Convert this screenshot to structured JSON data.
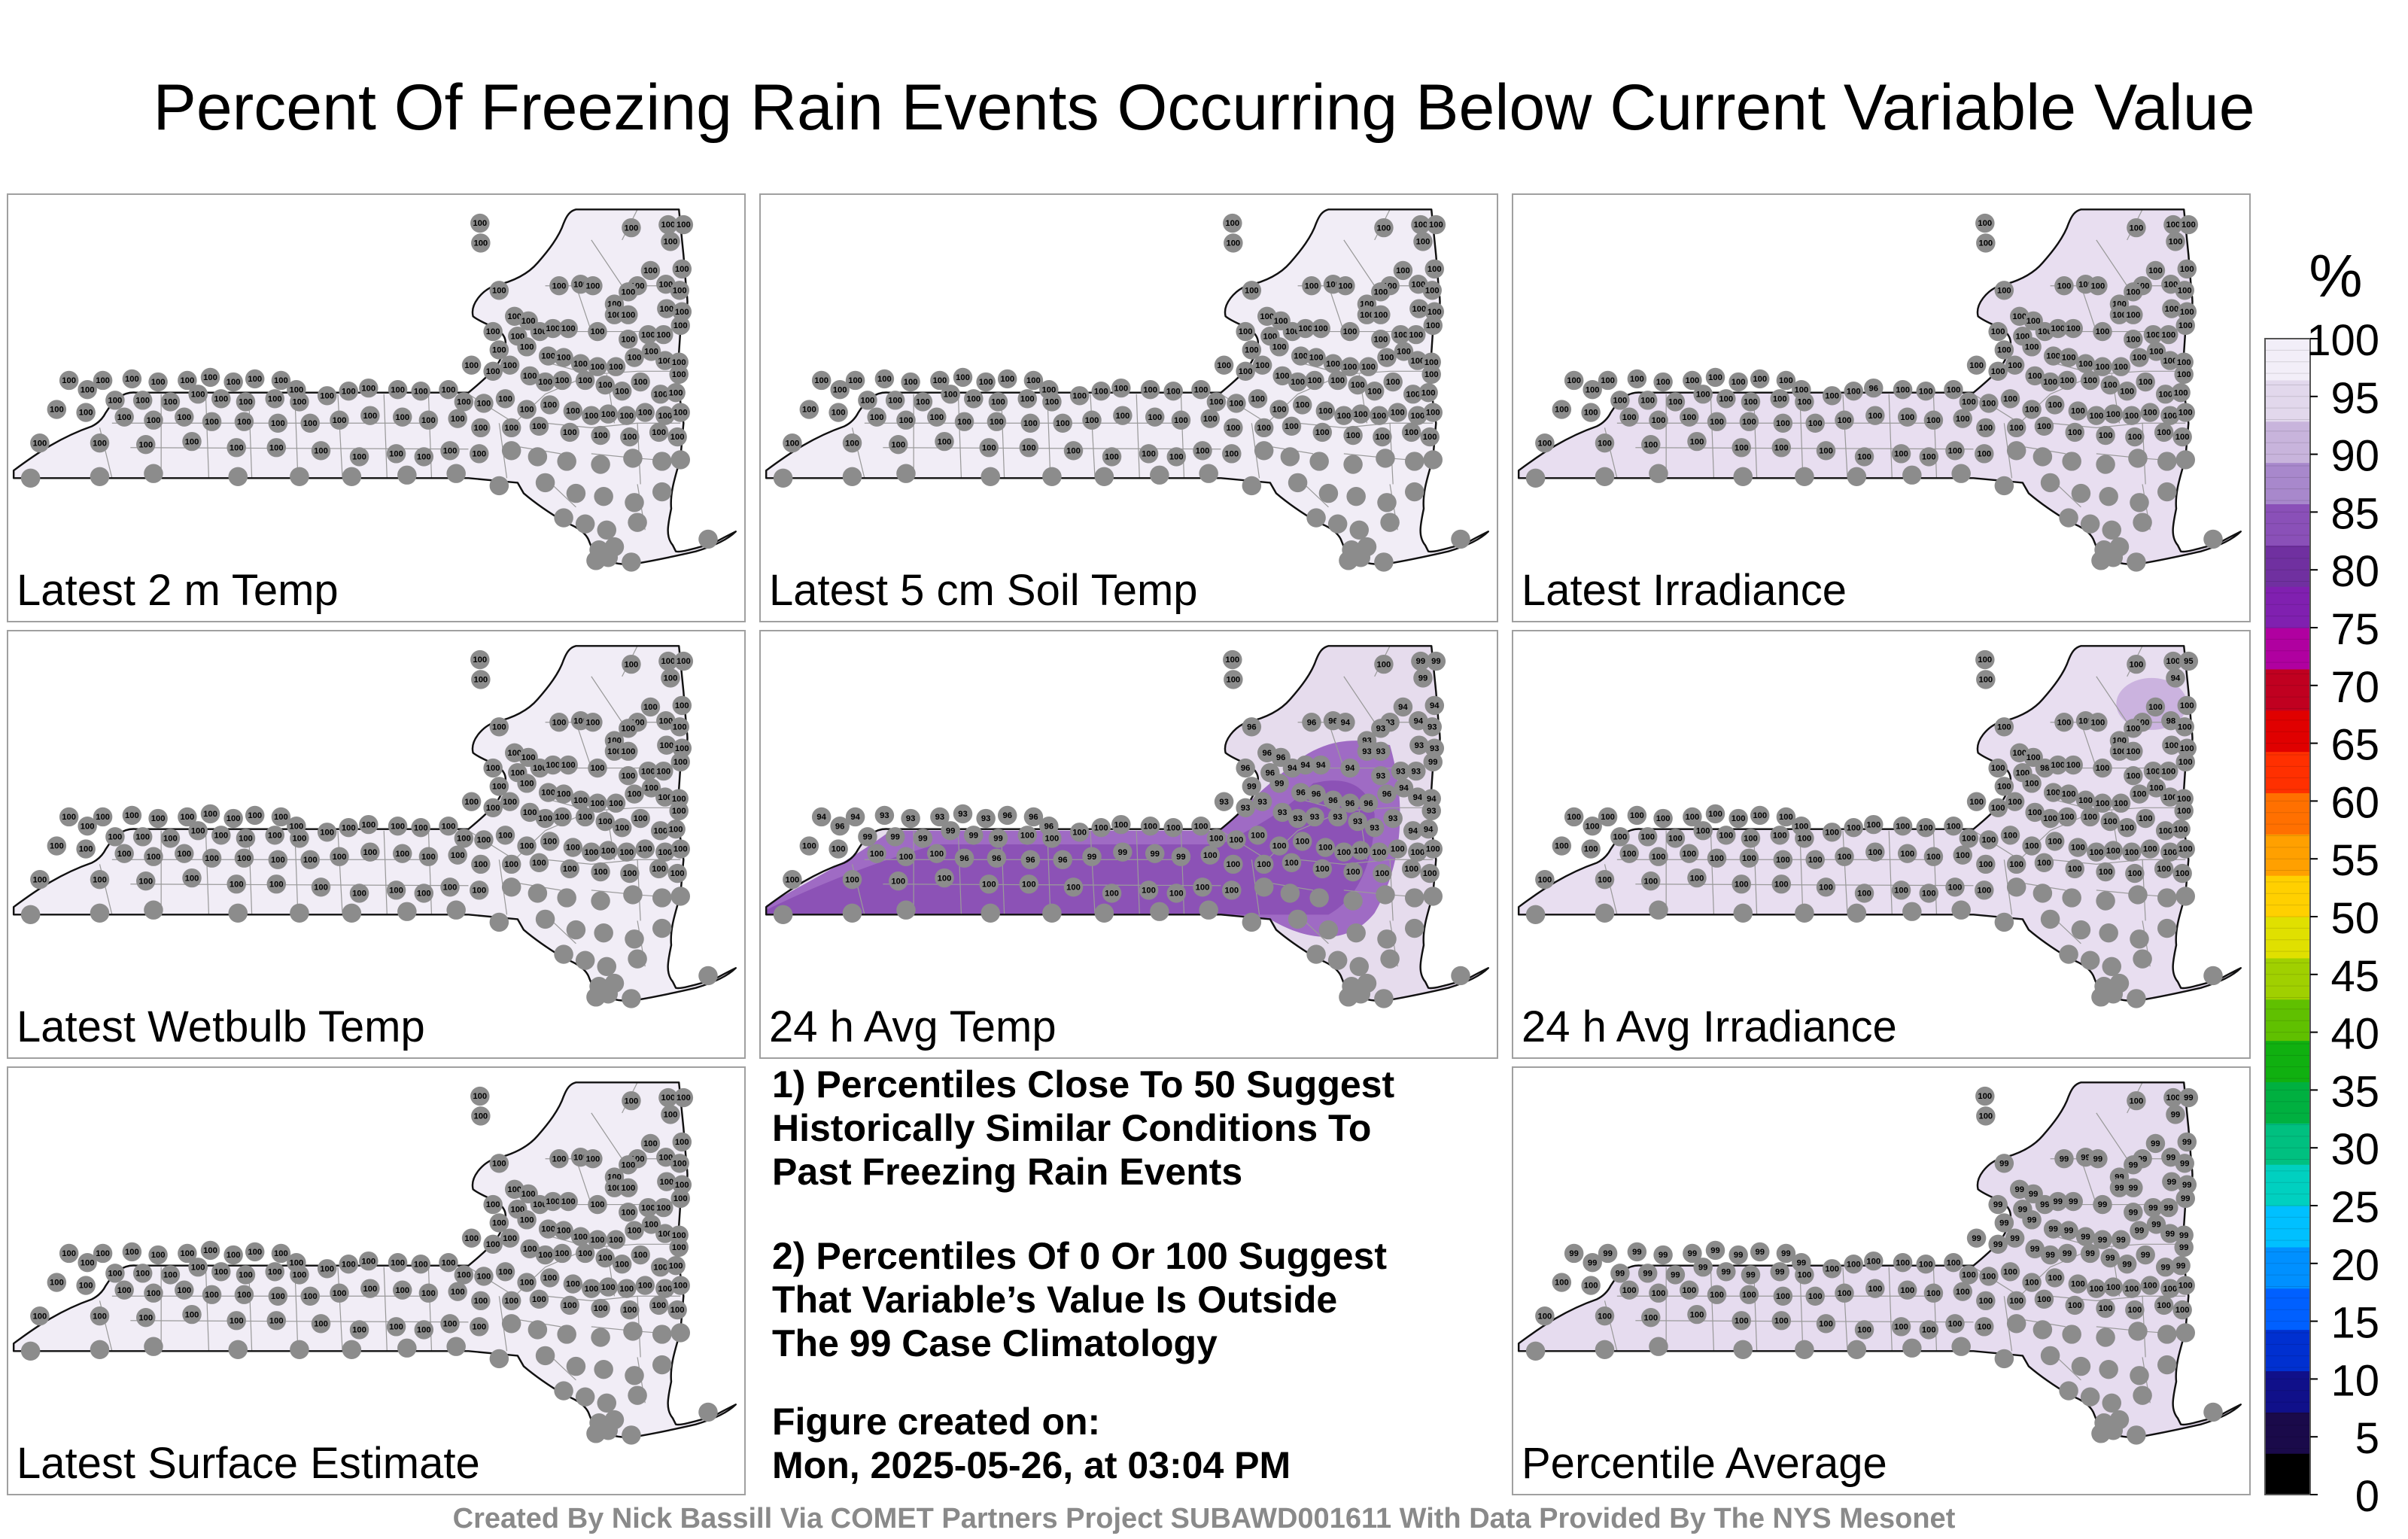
{
  "title": "Percent Of Freezing Rain Events Occurring Below Current Variable Value",
  "footer": "Created By Nick Bassill Via COMET Partners Project SUBAWD001611 With Data Provided By The NYS Mesonet",
  "panels": [
    {
      "id": "latest-2m-temp",
      "label": "Latest 2 m Temp",
      "fill": "#f1edf6",
      "values": [
        100,
        100,
        100,
        100,
        100,
        100,
        100,
        100,
        100,
        100,
        100,
        100,
        100,
        100,
        100,
        100,
        100,
        100,
        100,
        100,
        100,
        100,
        100,
        100,
        100,
        100,
        100,
        100,
        100,
        100,
        100,
        100,
        100,
        100,
        100,
        100,
        100,
        100,
        100,
        100,
        100,
        100,
        100,
        100,
        100,
        100,
        100,
        100,
        100,
        100,
        100,
        100,
        100,
        100,
        100,
        100,
        100,
        100,
        100,
        100,
        100,
        100,
        100,
        100,
        100,
        100,
        100,
        100,
        100,
        100,
        100,
        100,
        100,
        100,
        100,
        100,
        100,
        100,
        100,
        100,
        100,
        100,
        100,
        100,
        100,
        100,
        100,
        100,
        100,
        100,
        100,
        100,
        100,
        100,
        100,
        100,
        100,
        100,
        100,
        100,
        100,
        100,
        100,
        100,
        100,
        100,
        100,
        100,
        100,
        100,
        100,
        100,
        100,
        100,
        100,
        100,
        100,
        100,
        100,
        100,
        100,
        100,
        100,
        100,
        100,
        100,
        100,
        100
      ]
    },
    {
      "id": "latest-5cm-soil-temp",
      "label": "Latest 5 cm Soil Temp",
      "fill": "#f1edf6",
      "values": [
        100,
        100,
        100,
        100,
        100,
        100,
        100,
        100,
        100,
        100,
        100,
        100,
        100,
        100,
        100,
        100,
        100,
        100,
        100,
        100,
        100,
        100,
        100,
        100,
        100,
        100,
        100,
        100,
        100,
        100,
        100,
        100,
        100,
        100,
        100,
        100,
        100,
        100,
        100,
        100,
        100,
        100,
        100,
        100,
        100,
        100,
        100,
        100,
        100,
        100,
        100,
        100,
        100,
        100,
        100,
        100,
        100,
        100,
        100,
        100,
        100,
        100,
        100,
        100,
        100,
        100,
        100,
        100,
        100,
        100,
        100,
        100,
        100,
        100,
        100,
        100,
        100,
        100,
        100,
        100,
        100,
        100,
        100,
        100,
        100,
        100,
        100,
        100,
        100,
        100,
        100,
        100,
        100,
        100,
        100,
        100,
        100,
        100,
        100,
        100,
        100,
        100,
        100,
        100,
        100,
        100,
        100,
        100,
        100,
        100,
        100,
        100,
        100,
        100,
        100,
        100,
        100,
        100,
        100,
        100,
        100,
        100,
        100,
        100,
        100,
        100,
        100,
        100
      ]
    },
    {
      "id": "latest-irradiance",
      "label": "Latest Irradiance",
      "fill": "#e8def0",
      "values": [
        100,
        100,
        100,
        100,
        100,
        100,
        100,
        100,
        100,
        100,
        100,
        100,
        100,
        100,
        100,
        100,
        100,
        100,
        100,
        100,
        100,
        100,
        100,
        100,
        100,
        100,
        100,
        100,
        100,
        100,
        100,
        100,
        100,
        100,
        100,
        100,
        100,
        100,
        100,
        100,
        100,
        100,
        100,
        100,
        100,
        100,
        100,
        100,
        100,
        100,
        100,
        100,
        100,
        100,
        100,
        100,
        100,
        100,
        100,
        100,
        100,
        100,
        100,
        100,
        100,
        100,
        100,
        100,
        100,
        100,
        100,
        100,
        100,
        100,
        100,
        100,
        100,
        100,
        96,
        100,
        100,
        100,
        100,
        100,
        100,
        100,
        100,
        100,
        100,
        100,
        100,
        100,
        100,
        100,
        100,
        100,
        100,
        100,
        100,
        100,
        100,
        100,
        100,
        100,
        100,
        100,
        100,
        100,
        100,
        100,
        100,
        100,
        100,
        100,
        100,
        100,
        100,
        100,
        100,
        100,
        100,
        100,
        100,
        100,
        100,
        100,
        100,
        100
      ]
    },
    {
      "id": "latest-wetbulb-temp",
      "label": "Latest Wetbulb Temp",
      "fill": "#f1edf6",
      "values": [
        100,
        100,
        100,
        100,
        100,
        100,
        100,
        100,
        100,
        100,
        100,
        100,
        100,
        100,
        100,
        100,
        100,
        100,
        100,
        100,
        100,
        100,
        100,
        100,
        100,
        100,
        100,
        100,
        100,
        100,
        100,
        100,
        100,
        100,
        100,
        100,
        100,
        100,
        100,
        100,
        100,
        100,
        100,
        100,
        100,
        100,
        100,
        100,
        100,
        100,
        100,
        100,
        100,
        100,
        100,
        100,
        100,
        100,
        100,
        100,
        100,
        100,
        100,
        100,
        100,
        100,
        100,
        100,
        100,
        100,
        100,
        100,
        100,
        100,
        100,
        100,
        100,
        100,
        100,
        100,
        100,
        100,
        100,
        100,
        100,
        100,
        100,
        100,
        100,
        100,
        100,
        100,
        100,
        100,
        100,
        100,
        100,
        100,
        100,
        100,
        100,
        100,
        100,
        100,
        100,
        100,
        100,
        100,
        100,
        100,
        100,
        100,
        100,
        100,
        100,
        100,
        100,
        100,
        100,
        100,
        100,
        100,
        100,
        100,
        100,
        100,
        100,
        100
      ]
    },
    {
      "id": "24h-avg-temp",
      "label": "24 h Avg Temp",
      "fill": "#e6dced",
      "values": [
        100,
        100,
        100,
        99,
        99,
        99,
        96,
        96,
        96,
        94,
        94,
        94,
        94,
        93,
        93,
        93,
        93,
        93,
        93,
        93,
        93,
        96,
        96,
        96,
        96,
        94,
        94,
        94,
        94,
        93,
        93,
        93,
        99,
        99,
        99,
        96,
        96,
        96,
        96,
        96,
        96,
        94,
        94,
        94,
        93,
        93,
        93,
        93,
        93,
        93,
        93,
        93,
        93,
        93,
        93,
        94,
        94,
        94,
        94,
        93,
        93,
        93,
        93,
        93,
        96,
        96,
        96,
        96,
        99,
        99,
        99,
        99,
        99,
        99,
        100,
        100,
        100,
        100,
        100,
        100,
        100,
        100,
        100,
        100,
        100,
        100,
        100,
        100,
        100,
        100,
        100,
        100,
        100,
        100,
        100,
        100,
        100,
        100,
        100,
        96,
        96,
        96,
        96,
        99,
        99,
        99,
        99,
        100,
        100,
        100,
        100,
        100,
        100,
        100,
        100,
        100,
        100,
        100,
        100,
        100,
        100,
        100,
        100,
        100,
        100,
        100,
        100,
        100
      ]
    },
    {
      "id": "24h-avg-irradiance",
      "label": "24 h Avg Irradiance",
      "fill": "#e8def0",
      "values": [
        100,
        100,
        100,
        100,
        95,
        94,
        100,
        100,
        100,
        100,
        98,
        100,
        100,
        100,
        100,
        100,
        100,
        100,
        100,
        100,
        100,
        100,
        100,
        100,
        100,
        98,
        100,
        100,
        100,
        100,
        100,
        100,
        100,
        100,
        100,
        100,
        100,
        100,
        100,
        100,
        100,
        100,
        100,
        100,
        100,
        100,
        100,
        100,
        100,
        100,
        100,
        100,
        100,
        100,
        100,
        100,
        100,
        100,
        100,
        100,
        100,
        100,
        100,
        100,
        100,
        100,
        100,
        100,
        100,
        100,
        100,
        100,
        100,
        100,
        100,
        100,
        100,
        100,
        100,
        100,
        100,
        100,
        100,
        100,
        100,
        100,
        100,
        100,
        100,
        100,
        100,
        100,
        100,
        100,
        100,
        100,
        100,
        100,
        100,
        100,
        100,
        100,
        100,
        100,
        100,
        100,
        100,
        100,
        100,
        100,
        100,
        100,
        100,
        100,
        100,
        100,
        100,
        100,
        100,
        100,
        100,
        100,
        100,
        100,
        100,
        100,
        100,
        100
      ]
    },
    {
      "id": "latest-surface-estimate",
      "label": "Latest Surface Estimate",
      "fill": "#f1edf6",
      "values": [
        100,
        100,
        100,
        100,
        100,
        100,
        100,
        100,
        100,
        100,
        100,
        100,
        100,
        100,
        100,
        100,
        100,
        100,
        100,
        100,
        100,
        100,
        100,
        100,
        100,
        100,
        100,
        100,
        100,
        100,
        100,
        100,
        100,
        100,
        100,
        100,
        100,
        100,
        100,
        100,
        100,
        100,
        100,
        100,
        100,
        100,
        100,
        100,
        100,
        100,
        100,
        100,
        100,
        100,
        100,
        100,
        100,
        100,
        100,
        100,
        100,
        100,
        100,
        100,
        100,
        100,
        100,
        100,
        100,
        100,
        100,
        100,
        100,
        100,
        100,
        100,
        100,
        100,
        100,
        100,
        100,
        100,
        100,
        100,
        100,
        100,
        100,
        100,
        100,
        100,
        100,
        100,
        100,
        100,
        100,
        100,
        100,
        100,
        100,
        100,
        100,
        100,
        100,
        100,
        100,
        100,
        100,
        100,
        100,
        100,
        100,
        100,
        100,
        100,
        100,
        100,
        100,
        100,
        100,
        100,
        100,
        100,
        100,
        100,
        100,
        100,
        100,
        100
      ]
    },
    {
      "id": "percentile-average",
      "label": "Percentile Average",
      "fill": "#e6dcef",
      "values": [
        100,
        100,
        100,
        100,
        99,
        99,
        99,
        99,
        99,
        99,
        99,
        99,
        99,
        99,
        99,
        99,
        99,
        99,
        99,
        99,
        99,
        99,
        99,
        99,
        99,
        99,
        99,
        99,
        99,
        99,
        99,
        99,
        99,
        99,
        99,
        99,
        99,
        99,
        99,
        99,
        99,
        99,
        99,
        99,
        99,
        99,
        99,
        99,
        99,
        99,
        99,
        99,
        99,
        99,
        99,
        99,
        99,
        99,
        99,
        99,
        99,
        99,
        99,
        99,
        99,
        99,
        99,
        99,
        99,
        99,
        99,
        99,
        99,
        99,
        99,
        100,
        100,
        100,
        100,
        100,
        100,
        100,
        100,
        100,
        100,
        100,
        100,
        100,
        100,
        100,
        100,
        100,
        100,
        100,
        100,
        100,
        100,
        100,
        100,
        100,
        100,
        100,
        100,
        100,
        100,
        100,
        100,
        100,
        100,
        100,
        100,
        100,
        100,
        100,
        100,
        100,
        100,
        100,
        100,
        100,
        100,
        100,
        100,
        100,
        100,
        100,
        100,
        100
      ]
    }
  ],
  "notes": [
    {
      "lines": [
        "1) Percentiles Close To 50 Suggest",
        "Historically Similar Conditions To",
        "Past Freezing Rain Events"
      ]
    },
    {
      "lines": [
        "2) Percentiles Of 0 Or 100 Suggest",
        "That Variable’s Value Is Outside",
        "The 99 Case Climatology"
      ]
    },
    {
      "lines": [
        "Figure created on:",
        "Mon, 2025-05-26, at 03:04 PM"
      ]
    }
  ],
  "colorbar": {
    "unit": "%",
    "ticks": [
      "100",
      "95",
      "90",
      "85",
      "80",
      "75",
      "70",
      "65",
      "60",
      "55",
      "50",
      "45",
      "40",
      "35",
      "30",
      "25",
      "20",
      "15",
      "10",
      "5",
      "0"
    ],
    "colors": [
      "#000000",
      "#1a0a4a",
      "#10108a",
      "#0030d0",
      "#0060ff",
      "#0090ff",
      "#00c0ff",
      "#00d0c0",
      "#00c080",
      "#00b040",
      "#10b010",
      "#60c000",
      "#a0d000",
      "#e0e000",
      "#ffd000",
      "#ffa000",
      "#ff7000",
      "#ff3000",
      "#e00000",
      "#c00020",
      "#b000a0",
      "#8020b0",
      "#7030a0",
      "#8a50b8",
      "#a888cc",
      "#c8b4dc",
      "#e2d8ec",
      "#f2eef8"
    ]
  }
}
